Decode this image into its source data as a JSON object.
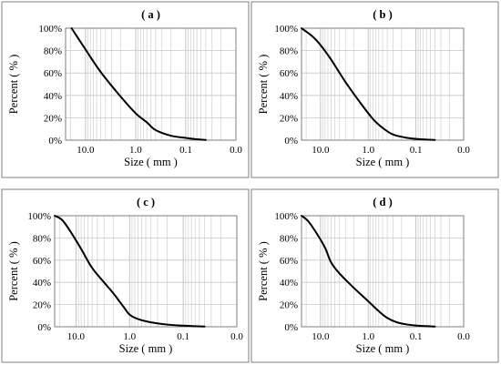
{
  "chart_data": [
    {
      "type": "line",
      "title": "( a )",
      "xlabel": "Size ( mm )",
      "ylabel": "Percent ( % )",
      "x_scale": "log",
      "x_reversed": true,
      "xlim": [
        25,
        0.01
      ],
      "ylim": [
        0,
        100
      ],
      "x_ticks": [
        10.0,
        1.0,
        0.1,
        0.01
      ],
      "x_tick_labels": [
        "10.0",
        "1.0",
        "0.1",
        "0.0"
      ],
      "y_ticks": [
        0,
        20,
        40,
        60,
        80,
        100
      ],
      "y_tick_labels": [
        "0%",
        "20%",
        "40%",
        "60%",
        "80%",
        "100%"
      ],
      "grid": true,
      "series": [
        {
          "x": [
            19,
            10,
            5,
            2,
            1,
            0.6,
            0.4,
            0.2,
            0.1,
            0.06,
            0.04
          ],
          "y": [
            100,
            81,
            61,
            39,
            24,
            16,
            9,
            4,
            2,
            0.8,
            0.2
          ]
        }
      ]
    },
    {
      "type": "line",
      "title": "( b )",
      "xlabel": "Size ( mm )",
      "ylabel": "Percent ( % )",
      "x_scale": "log",
      "x_reversed": true,
      "xlim": [
        25,
        0.01
      ],
      "ylim": [
        0,
        100
      ],
      "x_ticks": [
        10.0,
        1.0,
        0.1,
        0.01
      ],
      "x_tick_labels": [
        "10.0",
        "1.0",
        "0.1",
        "0.0"
      ],
      "y_ticks": [
        0,
        20,
        40,
        60,
        80,
        100
      ],
      "y_tick_labels": [
        "0%",
        "20%",
        "40%",
        "60%",
        "80%",
        "100%"
      ],
      "grid": true,
      "series": [
        {
          "x": [
            25,
            15,
            10,
            6,
            3,
            1.5,
            0.8,
            0.5,
            0.3,
            0.15,
            0.08,
            0.04
          ],
          "y": [
            100,
            93,
            85,
            72,
            52,
            34,
            19,
            11,
            5,
            2,
            0.8,
            0.2
          ]
        }
      ]
    },
    {
      "type": "line",
      "title": "( c )",
      "xlabel": "Size ( mm )",
      "ylabel": "Percent ( % )",
      "x_scale": "log",
      "x_reversed": true,
      "xlim": [
        25,
        0.01
      ],
      "ylim": [
        0,
        100
      ],
      "x_ticks": [
        10.0,
        1.0,
        0.1,
        0.01
      ],
      "x_tick_labels": [
        "10.0",
        "1.0",
        "0.1",
        "0.0"
      ],
      "y_ticks": [
        0,
        20,
        40,
        60,
        80,
        100
      ],
      "y_tick_labels": [
        "0%",
        "20%",
        "40%",
        "60%",
        "80%",
        "100%"
      ],
      "grid": true,
      "series": [
        {
          "x": [
            25,
            18,
            12,
            8,
            5,
            3,
            2,
            1.3,
            1,
            0.7,
            0.4,
            0.2,
            0.1,
            0.06,
            0.04
          ],
          "y": [
            100,
            96,
            84,
            70,
            53,
            40,
            30,
            18,
            11,
            7,
            4,
            2,
            1,
            0.5,
            0.2
          ]
        }
      ]
    },
    {
      "type": "line",
      "title": "( d )",
      "xlabel": "Size ( mm )",
      "ylabel": "Percent ( % )",
      "x_scale": "log",
      "x_reversed": true,
      "xlim": [
        25,
        0.01
      ],
      "ylim": [
        0,
        100
      ],
      "x_ticks": [
        10.0,
        1.0,
        0.1,
        0.01
      ],
      "x_tick_labels": [
        "10.0",
        "1.0",
        "0.1",
        "0.0"
      ],
      "y_ticks": [
        0,
        20,
        40,
        60,
        80,
        100
      ],
      "y_tick_labels": [
        "0%",
        "20%",
        "40%",
        "60%",
        "80%",
        "100%"
      ],
      "grid": true,
      "series": [
        {
          "x": [
            25,
            18,
            12,
            8,
            6,
            4,
            2,
            1,
            0.6,
            0.4,
            0.25,
            0.15,
            0.08,
            0.04
          ],
          "y": [
            100,
            95,
            84,
            71,
            58,
            48,
            35,
            23,
            14,
            8,
            4,
            2,
            0.8,
            0.2
          ]
        }
      ]
    }
  ]
}
